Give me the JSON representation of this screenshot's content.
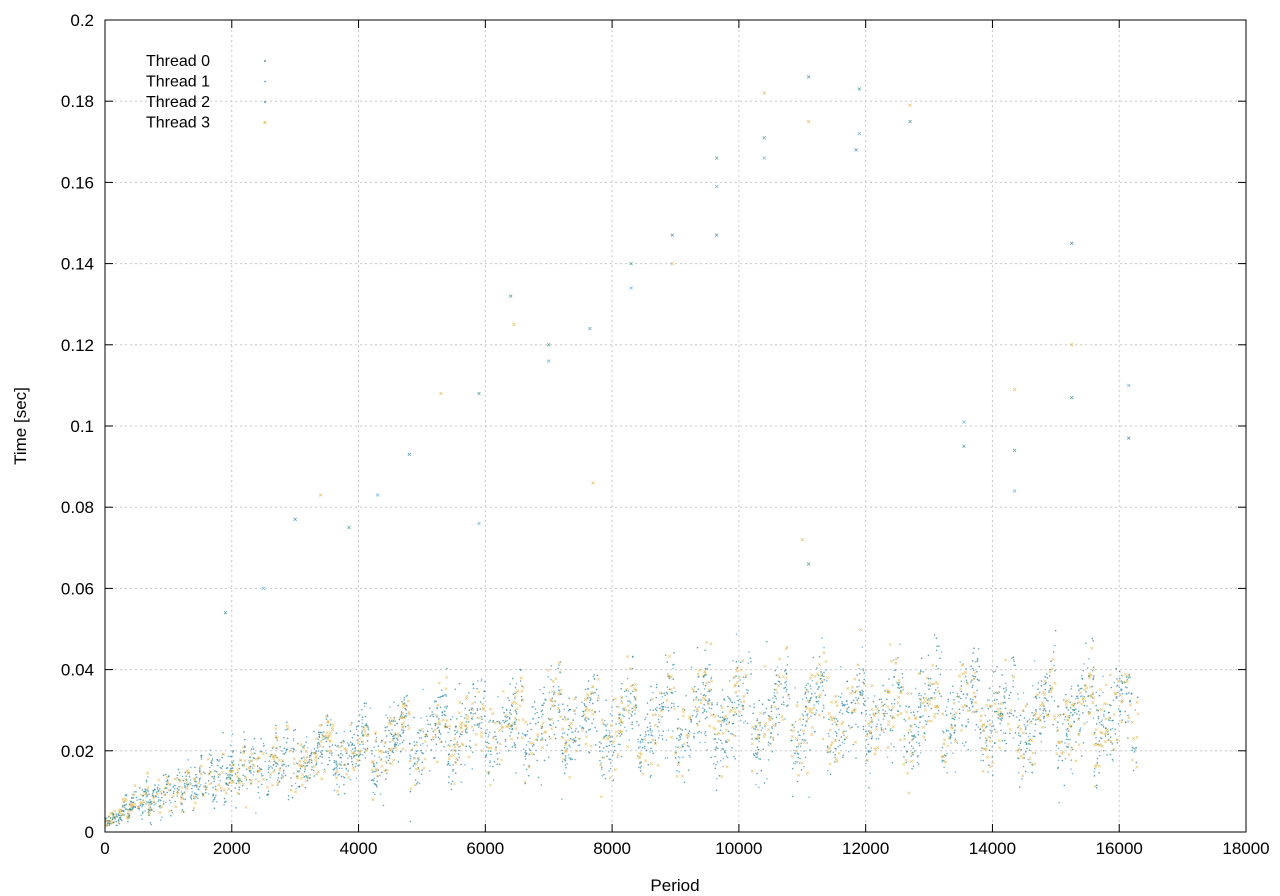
{
  "chart_data": {
    "type": "scatter",
    "title": "",
    "xlabel": "Period",
    "ylabel": "Time [sec]",
    "xlim": [
      0,
      18000
    ],
    "ylim": [
      0,
      0.2
    ],
    "x_ticks": [
      "0",
      "2000",
      "4000",
      "6000",
      "8000",
      "10000",
      "12000",
      "14000",
      "16000",
      "18000"
    ],
    "y_ticks": [
      "0",
      "0.02",
      "0.04",
      "0.06",
      "0.08",
      "0.1",
      "0.12",
      "0.14",
      "0.16",
      "0.18",
      "0.2"
    ],
    "grid": true,
    "legend_position": "top-left",
    "series": [
      {
        "name": "Thread 0",
        "color": "#2a8d8a",
        "marker": "dot"
      },
      {
        "name": "Thread 1",
        "color": "#4da3d8",
        "marker": "dot"
      },
      {
        "name": "Thread 2",
        "color": "#2e7d9a",
        "marker": "dot"
      },
      {
        "name": "Thread 3",
        "color": "#e0b23a",
        "marker": "x"
      }
    ],
    "trend_points": [
      {
        "period": 0,
        "time": 0.002
      },
      {
        "period": 500,
        "time": 0.007
      },
      {
        "period": 1000,
        "time": 0.01
      },
      {
        "period": 2000,
        "time": 0.014
      },
      {
        "period": 3000,
        "time": 0.018
      },
      {
        "period": 4000,
        "time": 0.02
      },
      {
        "period": 5000,
        "time": 0.023
      },
      {
        "period": 6000,
        "time": 0.026
      },
      {
        "period": 7000,
        "time": 0.026
      },
      {
        "period": 8000,
        "time": 0.027
      },
      {
        "period": 9000,
        "time": 0.028
      },
      {
        "period": 10000,
        "time": 0.029
      },
      {
        "period": 11000,
        "time": 0.029
      },
      {
        "period": 12000,
        "time": 0.03
      },
      {
        "period": 13000,
        "time": 0.03
      },
      {
        "period": 14000,
        "time": 0.029
      },
      {
        "period": 15000,
        "time": 0.029
      },
      {
        "period": 16000,
        "time": 0.029
      },
      {
        "period": 16300,
        "time": 0.028
      }
    ],
    "outliers": [
      {
        "period": 1900,
        "time": 0.054
      },
      {
        "period": 2500,
        "time": 0.06
      },
      {
        "period": 3000,
        "time": 0.077
      },
      {
        "period": 3400,
        "time": 0.083
      },
      {
        "period": 3850,
        "time": 0.075
      },
      {
        "period": 4300,
        "time": 0.083
      },
      {
        "period": 4800,
        "time": 0.093
      },
      {
        "period": 5300,
        "time": 0.108
      },
      {
        "period": 5900,
        "time": 0.108
      },
      {
        "period": 5900,
        "time": 0.076
      },
      {
        "period": 6400,
        "time": 0.132
      },
      {
        "period": 6450,
        "time": 0.125
      },
      {
        "period": 7000,
        "time": 0.12
      },
      {
        "period": 7000,
        "time": 0.116
      },
      {
        "period": 7650,
        "time": 0.124
      },
      {
        "period": 7700,
        "time": 0.086
      },
      {
        "period": 8300,
        "time": 0.14
      },
      {
        "period": 8300,
        "time": 0.134
      },
      {
        "period": 8950,
        "time": 0.147
      },
      {
        "period": 8950,
        "time": 0.14
      },
      {
        "period": 9650,
        "time": 0.166
      },
      {
        "period": 9650,
        "time": 0.159
      },
      {
        "period": 9650,
        "time": 0.147
      },
      {
        "period": 10400,
        "time": 0.182
      },
      {
        "period": 10400,
        "time": 0.171
      },
      {
        "period": 10400,
        "time": 0.166
      },
      {
        "period": 11100,
        "time": 0.186
      },
      {
        "period": 11100,
        "time": 0.175
      },
      {
        "period": 11900,
        "time": 0.183
      },
      {
        "period": 11900,
        "time": 0.172
      },
      {
        "period": 11850,
        "time": 0.168
      },
      {
        "period": 12700,
        "time": 0.179
      },
      {
        "period": 12700,
        "time": 0.175
      },
      {
        "period": 13550,
        "time": 0.101
      },
      {
        "period": 13550,
        "time": 0.095
      },
      {
        "period": 14350,
        "time": 0.109
      },
      {
        "period": 14350,
        "time": 0.094
      },
      {
        "period": 14350,
        "time": 0.084
      },
      {
        "period": 15250,
        "time": 0.145
      },
      {
        "period": 15250,
        "time": 0.12
      },
      {
        "period": 15250,
        "time": 0.107
      },
      {
        "period": 16150,
        "time": 0.11
      },
      {
        "period": 16150,
        "time": 0.097
      },
      {
        "period": 11000,
        "time": 0.072
      },
      {
        "period": 11100,
        "time": 0.066
      }
    ]
  }
}
